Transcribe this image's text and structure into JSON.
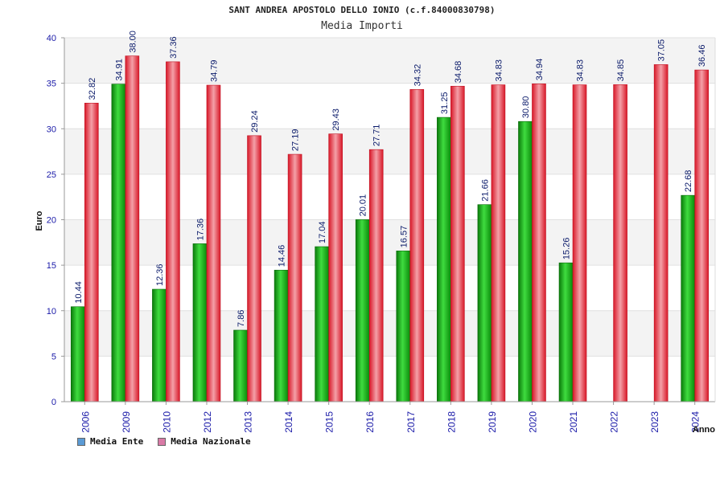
{
  "title": "SANT ANDREA APOSTOLO DELLO IONIO (c.f.84000830798)",
  "subtitle": "Media Importi",
  "chart_data": {
    "type": "bar",
    "title": "SANT ANDREA APOSTOLO DELLO IONIO (c.f.84000830798)",
    "subtitle": "Media Importi",
    "xlabel": "Anno",
    "ylabel": "Euro",
    "ylim": [
      0,
      40
    ],
    "yticks": [
      "0",
      "5",
      "10",
      "15",
      "20",
      "25",
      "30",
      "35",
      "40"
    ],
    "categories": [
      "2006",
      "2009",
      "2010",
      "2012",
      "2013",
      "2014",
      "2015",
      "2016",
      "2017",
      "2018",
      "2019",
      "2020",
      "2021",
      "2022",
      "2023",
      "2024"
    ],
    "series": [
      {
        "name": "Media Ente",
        "color": "#1fae1f",
        "values": [
          10.44,
          34.91,
          12.36,
          17.36,
          7.86,
          14.46,
          17.04,
          20.01,
          16.57,
          31.25,
          21.66,
          30.8,
          15.26,
          null,
          null,
          22.68
        ],
        "labels": [
          "10.44",
          "34.91",
          "12.36",
          "17.36",
          "7.86",
          "14.46",
          "17.04",
          "20.01",
          "16.57",
          "31.25",
          "21.66",
          "30.80",
          "15.26",
          "",
          "",
          "22.68"
        ]
      },
      {
        "name": "Media Nazionale",
        "color": "#e8273a",
        "values": [
          32.82,
          38.0,
          37.36,
          34.79,
          29.24,
          27.19,
          29.43,
          27.71,
          34.32,
          34.68,
          34.83,
          34.94,
          34.83,
          34.85,
          37.05,
          36.46
        ],
        "labels": [
          "32.82",
          "38.00",
          "37.36",
          "34.79",
          "29.24",
          "27.19",
          "29.43",
          "27.71",
          "34.32",
          "34.68",
          "34.83",
          "34.94",
          "34.83",
          "34.85",
          "37.05",
          "36.46"
        ]
      }
    ],
    "grid": true,
    "legend_position": "bottom-left"
  },
  "legend": [
    {
      "label": "Media Ente",
      "color": "#5b9bd5"
    },
    {
      "label": "Media Nazionale",
      "color": "#d97aa6"
    }
  ]
}
